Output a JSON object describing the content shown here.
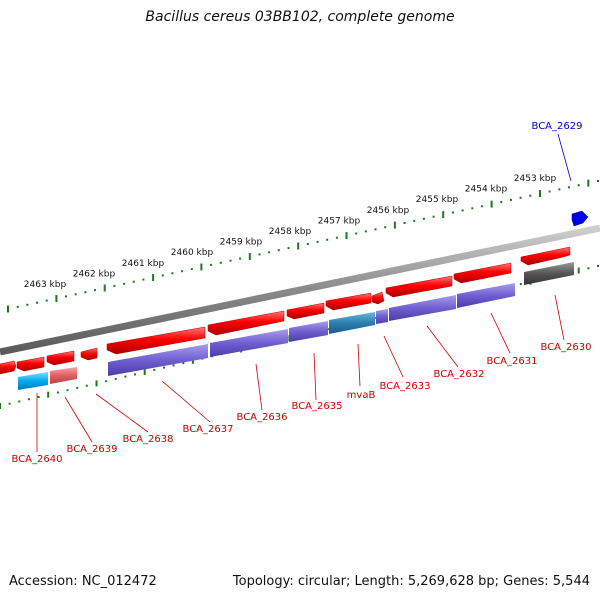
{
  "title": "Bacillus cereus 03BB102, complete genome",
  "accession": "Accession: NC_012472",
  "summary": "Topology: circular; Length: 5,269,628 bp; Genes: 5,544",
  "scale": {
    "labels": [
      "2453 kbp",
      "2454 kbp",
      "2455 kbp",
      "2456 kbp",
      "2457 kbp",
      "2458 kbp",
      "2459 kbp",
      "2460 kbp",
      "2461 kbp",
      "2462 kbp",
      "2463 kbp"
    ]
  },
  "genes": [
    {
      "name": "BCA_2629",
      "color": "#0000cc"
    },
    {
      "name": "BCA_2630",
      "color": "#cc0000"
    },
    {
      "name": "BCA_2631",
      "color": "#cc0000"
    },
    {
      "name": "BCA_2632",
      "color": "#cc0000"
    },
    {
      "name": "BCA_2633",
      "color": "#cc0000"
    },
    {
      "name": "mvaB",
      "color": "#cc0000"
    },
    {
      "name": "BCA_2635",
      "color": "#cc0000"
    },
    {
      "name": "BCA_2636",
      "color": "#cc0000"
    },
    {
      "name": "BCA_2637",
      "color": "#cc0000"
    },
    {
      "name": "BCA_2638",
      "color": "#cc0000"
    },
    {
      "name": "BCA_2639",
      "color": "#cc0000"
    },
    {
      "name": "BCA_2640",
      "color": "#cc0000"
    }
  ],
  "colors": {
    "cds": "#ee0000",
    "gene_purple": "#6f5fd0",
    "gene_teal": "#2a7fb0",
    "gene_grey": "#555555",
    "gene_cyan": "#00aaee",
    "gene_pink": "#e06060",
    "blue_gene": "#0000ee",
    "ruler": "#1a7a1a",
    "backbone": "#888888"
  }
}
